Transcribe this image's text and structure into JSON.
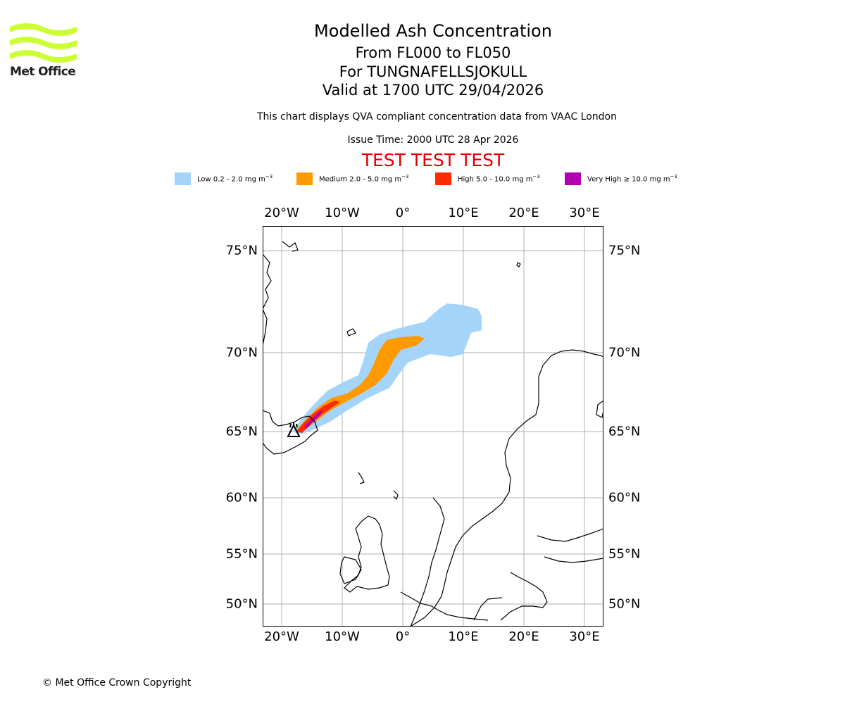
{
  "header": {
    "logo_text": "Met Office",
    "title": "Modelled Ash Concentration",
    "levels": "From FL000 to FL050",
    "volcano": "For TUNGNAFELLSJOKULL",
    "valid": "Valid at 1700 UTC 29/04/2026",
    "note": "This chart displays QVA compliant concentration data from VAAC London",
    "issue": "Issue Time: 2000 UTC 28 Apr 2026",
    "test_banner": "TEST TEST TEST",
    "banner_color": "#e00000"
  },
  "legend": [
    {
      "label": "Low 0.2 - 2.0 mg m",
      "color": "#a5d4fb"
    },
    {
      "label": "Medium 2.0 - 5.0 mg m",
      "color": "#ff9900"
    },
    {
      "label": "High 5.0 - 10.0 mg m",
      "color": "#ff2a00"
    },
    {
      "label": "Very High ≥ 10.0 mg m",
      "color": "#b000b0"
    }
  ],
  "legend_unit_exponent": "−3",
  "map": {
    "lon_range": [
      -23,
      33
    ],
    "lat_range": [
      48.5,
      76.6
    ],
    "lon_ticks": [
      "20°W",
      "10°W",
      "0°",
      "10°E",
      "20°E",
      "30°E"
    ],
    "lat_ticks": [
      "75°N",
      "70°N",
      "65°N",
      "60°N",
      "55°N",
      "50°N"
    ],
    "gridline_color": "#b0b0b0",
    "volcano_marker": "volcano-triangle-icon"
  },
  "footer": {
    "copyright": "© Met Office Crown Copyright"
  }
}
